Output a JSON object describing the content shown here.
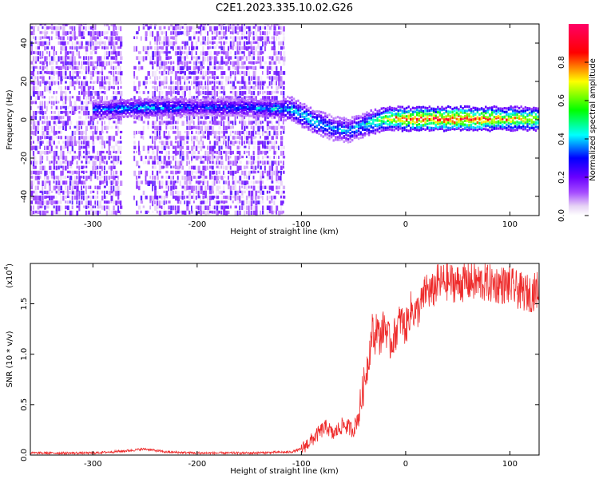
{
  "title": "C2E1.2023.335.10.02.G26",
  "colors": {
    "snr_line": "#ee2b2b",
    "colormap": [
      "#ffffff",
      "#e6d2f5",
      "#a64dff",
      "#6a00ff",
      "#0000ff",
      "#00ffff",
      "#00ff00",
      "#ffff00",
      "#ff0000",
      "#ff0066"
    ]
  },
  "chart_data": [
    {
      "type": "heatmap",
      "panel": "spectrogram",
      "xlabel": "Height of straight line (km)",
      "ylabel": "Frequency (Hz)",
      "xlim": [
        -360,
        128
      ],
      "ylim": [
        -50,
        50
      ],
      "x_ticks": [
        "-300",
        "-200",
        "-100",
        "0",
        "100"
      ],
      "x_tick_values": [
        -300,
        -200,
        -100,
        0,
        100
      ],
      "y_ticks": [
        "-40",
        "-20",
        "0",
        "20",
        "40"
      ],
      "y_tick_values": [
        -40,
        -20,
        0,
        20,
        40
      ],
      "colorbar": {
        "label": "Normalized spectral amplitude",
        "range": [
          0,
          1
        ],
        "ticks": [
          "0.0",
          "0.2",
          "0.4",
          "0.6",
          "0.8"
        ],
        "tick_values": [
          0.0,
          0.2,
          0.4,
          0.6,
          0.8
        ]
      },
      "signal_ridge": [
        {
          "x": -290,
          "freq": 5,
          "amp": 0.35
        },
        {
          "x": -250,
          "freq": 6,
          "amp": 0.4
        },
        {
          "x": -200,
          "freq": 6,
          "amp": 0.3
        },
        {
          "x": -150,
          "freq": 6,
          "amp": 0.35
        },
        {
          "x": -110,
          "freq": 5,
          "amp": 0.45
        },
        {
          "x": -90,
          "freq": -1,
          "amp": 0.45
        },
        {
          "x": -70,
          "freq": -5,
          "amp": 0.4
        },
        {
          "x": -55,
          "freq": -6,
          "amp": 0.4
        },
        {
          "x": -40,
          "freq": -3,
          "amp": 0.45
        },
        {
          "x": -20,
          "freq": 0,
          "amp": 0.7
        },
        {
          "x": 0,
          "freq": 0,
          "amp": 0.85
        },
        {
          "x": 50,
          "freq": 0,
          "amp": 0.95
        },
        {
          "x": 128,
          "freq": 0,
          "amp": 0.7
        }
      ]
    },
    {
      "type": "line",
      "panel": "snr",
      "xlabel": "Height of straight line (km)",
      "ylabel": "SNR (10 * v/v)",
      "y_multiplier": "(x10",
      "y_multiplier_exp": "4",
      "xlim": [
        -360,
        128
      ],
      "ylim": [
        0,
        1.9
      ],
      "x_ticks": [
        "-300",
        "-200",
        "-100",
        "0",
        "100"
      ],
      "x_tick_values": [
        -300,
        -200,
        -100,
        0,
        100
      ],
      "y_ticks": [
        "0.0",
        "0.5",
        "1.0",
        "1.5"
      ],
      "y_tick_values": [
        0.0,
        0.5,
        1.0,
        1.5
      ],
      "series": [
        {
          "x": [
            -360,
            -300,
            -270,
            -250,
            -230,
            -200,
            -150,
            -110,
            -100,
            -90,
            -80,
            -75,
            -70,
            -60,
            -50,
            -45,
            -40,
            -35,
            -32,
            -30,
            -28,
            -25,
            -20,
            -15,
            -10,
            -5,
            0,
            5,
            10,
            15,
            20,
            25,
            30,
            40,
            50,
            60,
            80,
            100,
            110,
            120,
            128
          ],
          "y": [
            0.02,
            0.02,
            0.04,
            0.06,
            0.03,
            0.02,
            0.02,
            0.03,
            0.06,
            0.15,
            0.25,
            0.28,
            0.2,
            0.3,
            0.25,
            0.4,
            0.7,
            1.0,
            1.25,
            1.1,
            1.3,
            1.15,
            1.3,
            1.1,
            1.2,
            1.35,
            1.25,
            1.45,
            1.4,
            1.5,
            1.65,
            1.6,
            1.7,
            1.72,
            1.7,
            1.72,
            1.7,
            1.68,
            1.62,
            1.6,
            1.65
          ]
        }
      ]
    }
  ]
}
